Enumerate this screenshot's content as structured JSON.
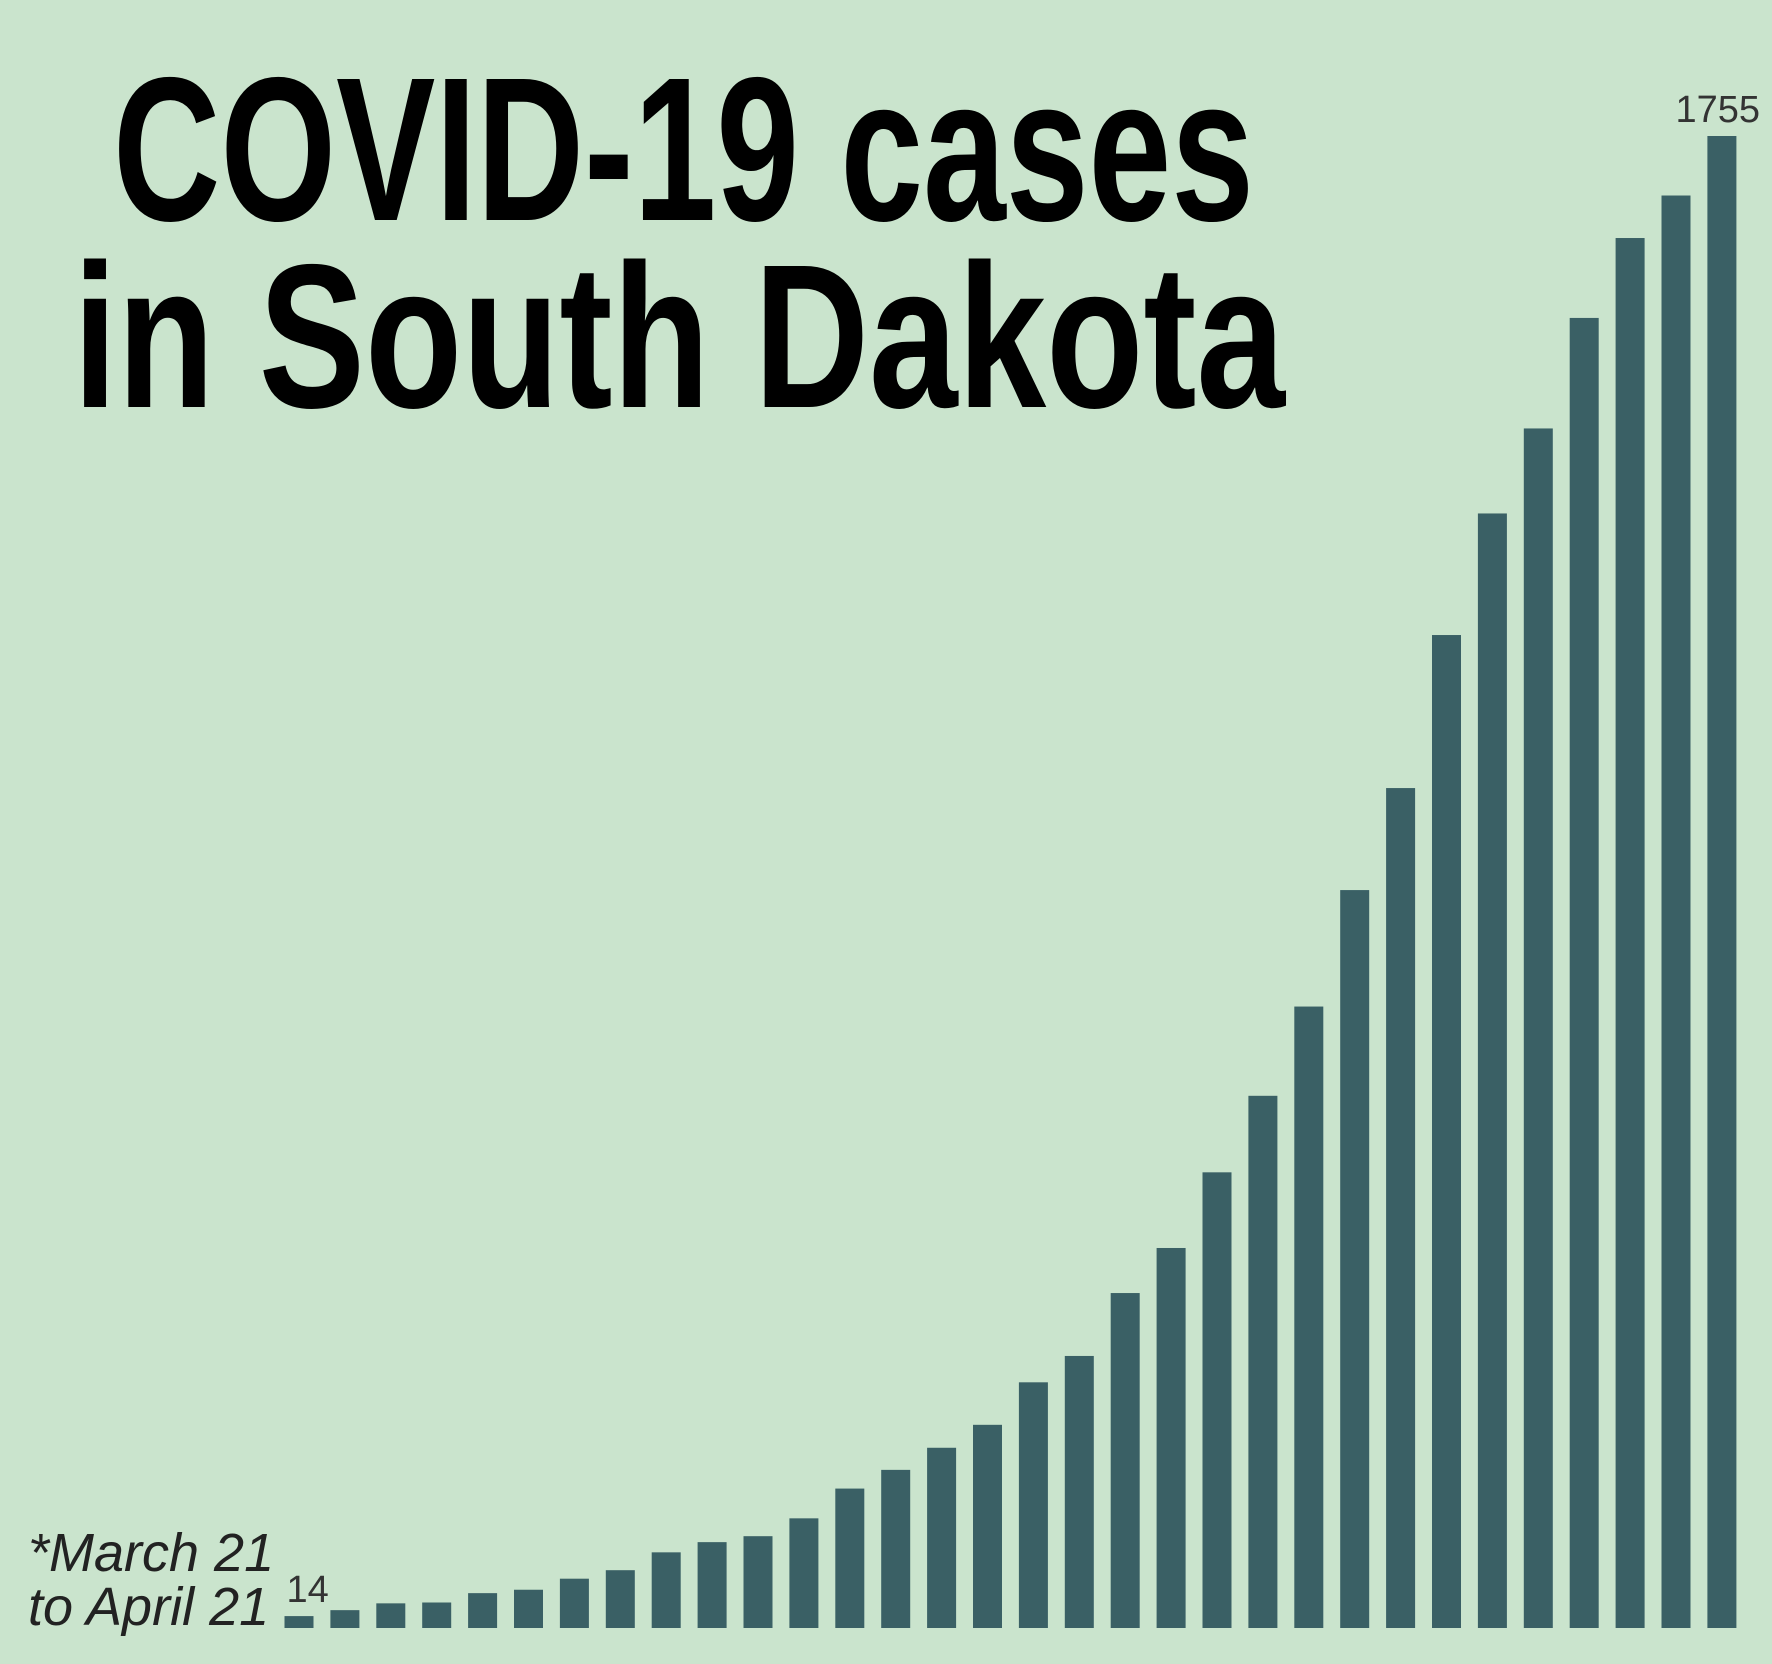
{
  "chart_data": {
    "type": "bar",
    "title_lines": [
      "COVID-19 cases",
      "in South Dakota"
    ],
    "note_lines": [
      "*March 21",
      "to April 21"
    ],
    "color": "#3a6065",
    "values": [
      14,
      21,
      29,
      30,
      41,
      45,
      58,
      68,
      89,
      101,
      108,
      129,
      164,
      186,
      212,
      239,
      289,
      320,
      394,
      447,
      536,
      626,
      731,
      868,
      988,
      1168,
      1311,
      1411,
      1541,
      1635,
      1685,
      1755
    ],
    "labeled_values": [
      0,
      31
    ]
  }
}
